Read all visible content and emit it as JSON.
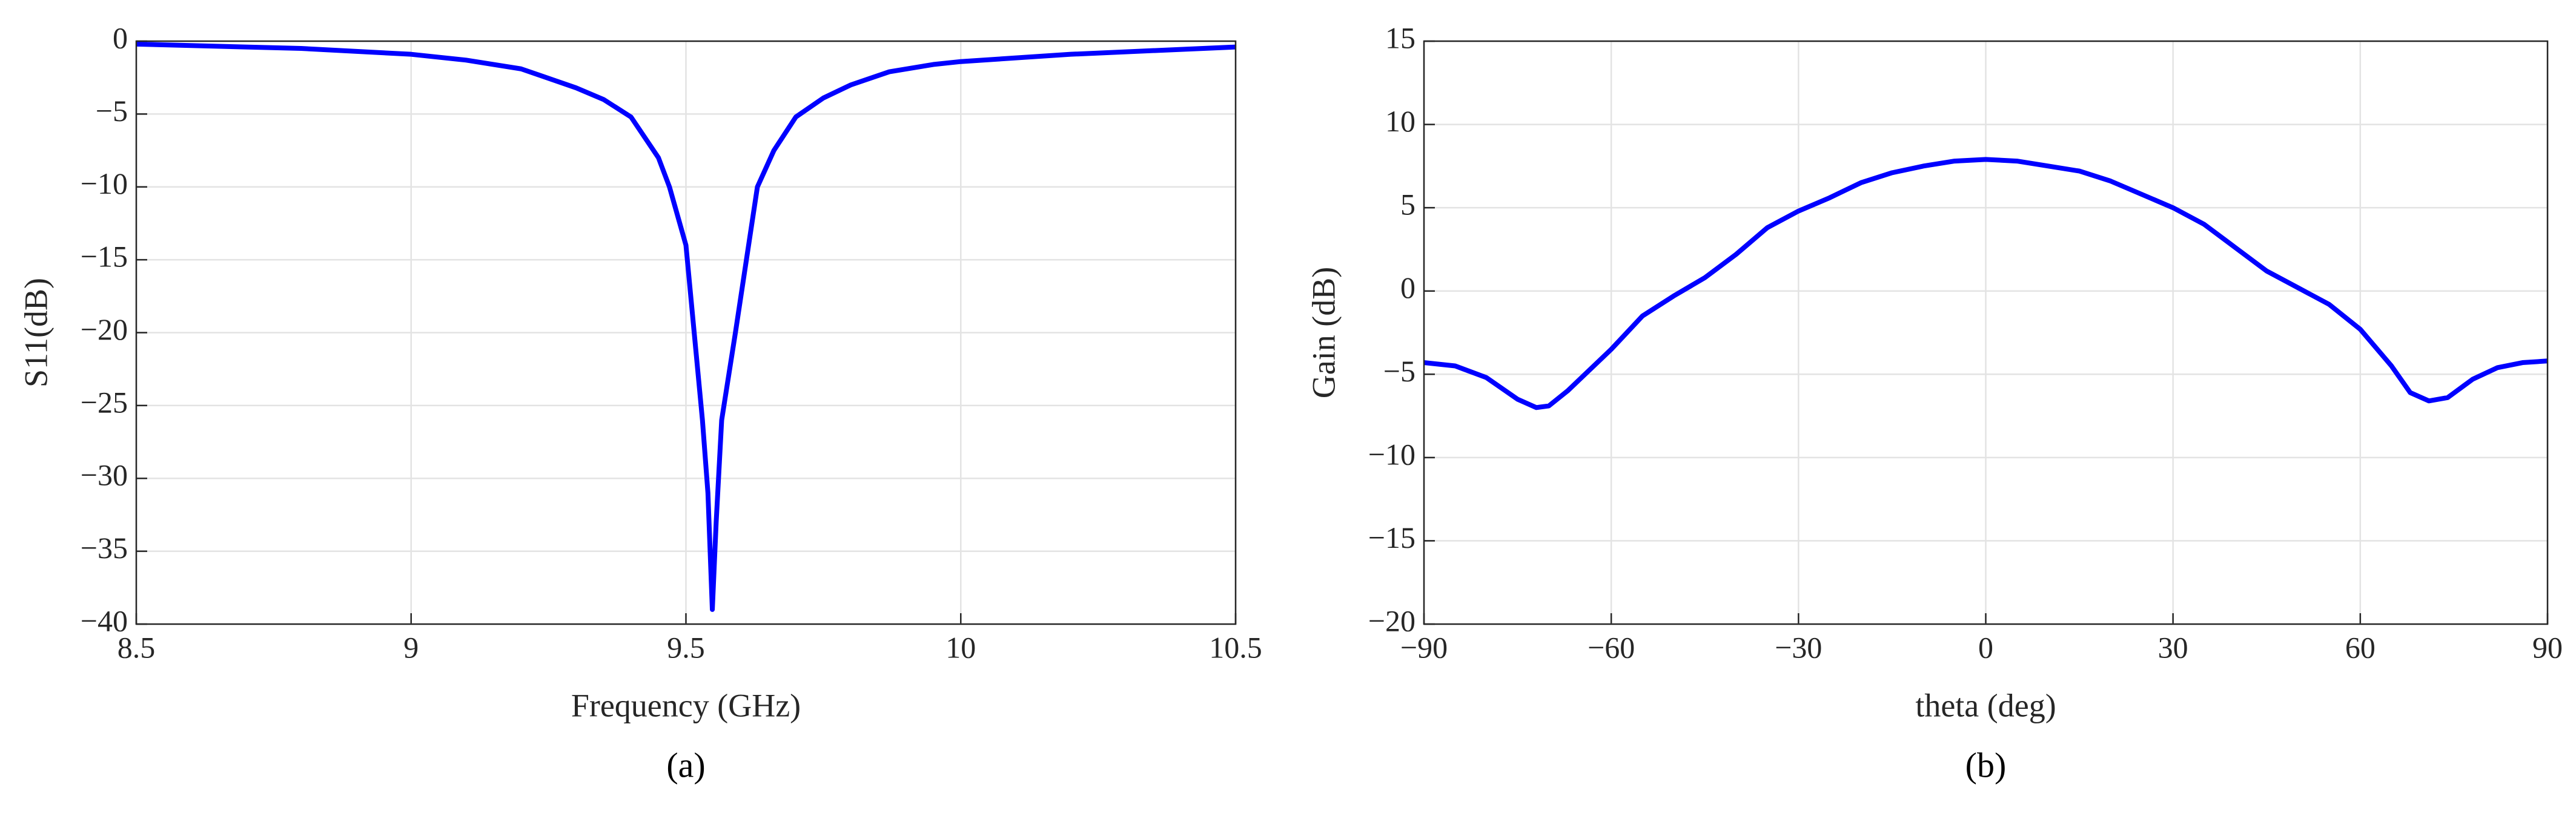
{
  "chart_data": [
    {
      "type": "line",
      "caption": "(a)",
      "xlabel": "Frequency (GHz)",
      "ylabel": "S11(dB)",
      "grid": true,
      "xlim": [
        8.5,
        10.5
      ],
      "xticks": [
        8.5,
        9,
        9.5,
        10,
        10.5
      ],
      "ylim": [
        -40,
        0
      ],
      "yticks": [
        {
          "value": -40,
          "label": "−40"
        },
        {
          "value": -35,
          "label": "−35"
        },
        {
          "value": -30,
          "label": "−30"
        },
        {
          "value": -25,
          "label": "−25"
        },
        {
          "value": -20,
          "label": "−20"
        },
        {
          "value": -15,
          "label": "−15"
        },
        {
          "value": -10,
          "label": "−10"
        },
        {
          "value": -5,
          "label": "−5"
        },
        0
      ],
      "x": [
        8.5,
        8.8,
        9.0,
        9.1,
        9.2,
        9.3,
        9.35,
        9.4,
        9.45,
        9.47,
        9.5,
        9.515,
        9.53,
        9.54,
        9.548,
        9.555,
        9.565,
        9.59,
        9.61,
        9.63,
        9.66,
        9.7,
        9.75,
        9.8,
        9.87,
        9.95,
        10.0,
        10.2,
        10.5
      ],
      "series": [
        {
          "color": "#0000ff",
          "values": [
            -0.2,
            -0.5,
            -0.9,
            -1.3,
            -1.9,
            -3.2,
            -4.0,
            -5.2,
            -8,
            -10,
            -14,
            -20,
            -26,
            -31,
            -39,
            -33,
            -26,
            -20,
            -15,
            -10,
            -7.5,
            -5.2,
            -3.9,
            -3.0,
            -2.1,
            -1.6,
            -1.4,
            -0.9,
            -0.4
          ]
        }
      ]
    },
    {
      "type": "line",
      "caption": "(b)",
      "xlabel": "theta (deg)",
      "ylabel": "Gain (dB)",
      "grid": true,
      "xlim": [
        -90,
        90
      ],
      "xticks": [
        {
          "value": -90,
          "label": "−90"
        },
        {
          "value": -60,
          "label": "−60"
        },
        {
          "value": -30,
          "label": "−30"
        },
        0,
        30,
        60,
        90
      ],
      "ylim": [
        -20,
        15
      ],
      "yticks": [
        {
          "value": -20,
          "label": "−20"
        },
        {
          "value": -15,
          "label": "−15"
        },
        {
          "value": -10,
          "label": "−10"
        },
        {
          "value": -5,
          "label": "−5"
        },
        0,
        5,
        10,
        15
      ],
      "x": [
        -90,
        -85,
        -80,
        -75,
        -72,
        -70,
        -67,
        -60,
        -55,
        -50,
        -45,
        -40,
        -35,
        -30,
        -25,
        -20,
        -15,
        -10,
        -5,
        0,
        5,
        10,
        15,
        20,
        25,
        30,
        35,
        40,
        45,
        50,
        55,
        60,
        65,
        68,
        71,
        74,
        78,
        82,
        86,
        90
      ],
      "series": [
        {
          "color": "#0000ff",
          "values": [
            -4.3,
            -4.5,
            -5.2,
            -6.5,
            -7.0,
            -6.9,
            -6,
            -3.5,
            -1.5,
            -0.3,
            0.8,
            2.2,
            3.8,
            4.8,
            5.6,
            6.5,
            7.1,
            7.5,
            7.8,
            7.9,
            7.8,
            7.5,
            7.2,
            6.6,
            5.8,
            5.0,
            4.0,
            2.6,
            1.2,
            0.2,
            -0.8,
            -2.3,
            -4.5,
            -6.1,
            -6.6,
            -6.4,
            -5.3,
            -4.6,
            -4.3,
            -4.2
          ]
        }
      ]
    }
  ]
}
